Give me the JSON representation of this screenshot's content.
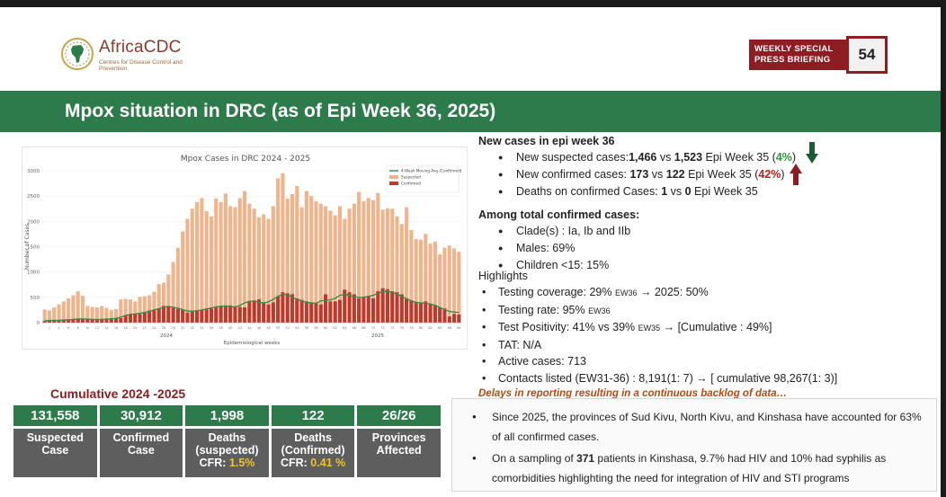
{
  "header": {
    "logo_name": "AfricaCDC",
    "logo_subtitle": "Centres for Disease Control and Prevention",
    "briefing_label_line1": "WEEKLY SPECIAL",
    "briefing_label_line2": "PRESS BRIEFING",
    "slide_number": "54"
  },
  "title": "Mpox situation in DRC (as of Epi Week 36, 2025)",
  "new_cases": {
    "heading": "New cases in epi week 36",
    "suspected": {
      "prefix": "New suspected cases:",
      "current": "1,466",
      "vs": " vs ",
      "previous": "1,523",
      "suffix": " Epi Week 35 (",
      "change": "4%",
      "close": ")"
    },
    "confirmed": {
      "prefix": "New confirmed cases: ",
      "current": "173",
      "vs": " vs ",
      "previous": "122",
      "suffix": " Epi Week 35 (",
      "change": "42%",
      "close": ")"
    },
    "deaths": {
      "prefix": "Deaths on confirmed Cases: ",
      "current": "1",
      "vs": " vs ",
      "previous": "0",
      "suffix": " Epi Week 35"
    },
    "colors": {
      "decrease": "#2a9a3a",
      "increase": "#b81e1e"
    },
    "icons": {
      "decrease": "arrow-down-icon",
      "increase": "arrow-up-icon"
    }
  },
  "confirmed_totals": {
    "heading": "Among total confirmed cases:",
    "items": [
      "Clade(s) : Ia, Ib and IIb",
      "Males: 69%",
      "Children <15: 15%"
    ]
  },
  "highlights": {
    "heading": "Highlights",
    "items": [
      {
        "text": "Testing coverage: 29% ",
        "small": "EW36",
        "rest": " → 2025: 50%"
      },
      {
        "text": "Testing rate: 95% ",
        "small": "EW36",
        "rest": ""
      },
      {
        "text": "Test Positivity: 41% vs 39% ",
        "small": "EW35",
        "rest": " →     [Cumulative : 49%]"
      },
      {
        "text": "TAT:  N/A",
        "small": "",
        "rest": ""
      },
      {
        "text": "Active cases: 713",
        "small": "",
        "rest": ""
      },
      {
        "text": "Contacts listed (EW31-36) : 8,191(1: 7) → [ cumulative  98,267(1: 3)]",
        "small": "",
        "rest": ""
      }
    ],
    "note": "Delays in reporting resulting in a continuous backlog of data…"
  },
  "cumulative": {
    "title": "Cumulative 2024 -2025",
    "stats": [
      {
        "value": "131,558",
        "label_line1": "Suspected",
        "label_line2": "Case",
        "cfr_prefix": "",
        "cfr_value": ""
      },
      {
        "value": "30,912",
        "label_line1": "Confirmed",
        "label_line2": "Case",
        "cfr_prefix": "",
        "cfr_value": ""
      },
      {
        "value": "1,998",
        "label_line1": "Deaths",
        "label_line2": "(suspected)",
        "cfr_prefix": "CFR: ",
        "cfr_value": "1.5%"
      },
      {
        "value": "122",
        "label_line1": "Deaths",
        "label_line2": "(Confirmed)",
        "cfr_prefix": "CFR: ",
        "cfr_value": "0.41 %"
      },
      {
        "value": "26/26",
        "label_line1": "Provinces",
        "label_line2": "Affected",
        "cfr_prefix": "",
        "cfr_value": ""
      }
    ]
  },
  "summary": {
    "items": [
      {
        "text": "Since 2025, the provinces of Sud Kivu, North Kivu, and Kinshasa have accounted for 63% of all confirmed cases."
      },
      {
        "pre": "On a sampling of ",
        "bold": "371",
        "post": " patients in Kinshasa, 9.7% had HIV and 10% had syphilis as comorbidities highlighting the need for integration of HIV and STI programs"
      }
    ]
  },
  "chart_data": {
    "type": "bar",
    "title": "Mpox Cases in DRC 2024 - 2025",
    "xlabel": "Epidemiological weeks",
    "ylabel": "Number of Cases",
    "ylim": [
      0,
      3000
    ],
    "yticks": [
      0,
      500,
      1000,
      1500,
      2000,
      2500,
      3000
    ],
    "year_labels": [
      "2024",
      "2025"
    ],
    "legend": [
      "4-Week Moving Avg (Confirmed)",
      "Suspected",
      "Confirmed"
    ],
    "legend_placement": "top-right",
    "colors": {
      "suspected": "#f0b48c",
      "confirmed": "#c0392b",
      "moving_avg": "#3a8a4a"
    },
    "x": [
      1,
      2,
      3,
      4,
      5,
      6,
      7,
      8,
      9,
      10,
      11,
      12,
      13,
      14,
      15,
      16,
      17,
      18,
      19,
      20,
      21,
      22,
      23,
      24,
      25,
      26,
      27,
      28,
      29,
      30,
      31,
      32,
      33,
      34,
      35,
      36,
      37,
      38,
      39,
      40,
      41,
      42,
      43,
      44,
      45,
      46,
      47,
      48,
      49,
      50,
      51,
      52,
      53,
      54,
      55,
      56,
      57,
      58,
      59,
      60,
      61,
      62,
      63,
      64,
      65,
      66,
      67,
      68,
      69,
      70,
      71,
      72,
      73,
      74,
      75,
      76,
      77,
      78,
      79,
      80,
      81,
      82,
      83,
      84,
      85,
      86,
      87,
      88
    ],
    "series": [
      {
        "name": "Suspected",
        "values": [
          260,
          240,
          300,
          360,
          420,
          480,
          540,
          620,
          530,
          330,
          310,
          300,
          330,
          290,
          250,
          270,
          460,
          470,
          460,
          420,
          510,
          520,
          540,
          610,
          760,
          790,
          950,
          1200,
          1480,
          1800,
          2050,
          2250,
          2380,
          2460,
          2200,
          2100,
          2450,
          2380,
          2550,
          2300,
          2280,
          2460,
          2600,
          2350,
          2250,
          2080,
          2140,
          2050,
          2300,
          2850,
          2950,
          2450,
          2540,
          2700,
          2280,
          2600,
          2500,
          2400,
          2350,
          2300,
          2210,
          2120,
          2300,
          2050,
          2250,
          2350,
          2580,
          2400,
          2460,
          2420,
          2560,
          2230,
          2260,
          2250,
          2100,
          1950,
          2280,
          1830,
          1650,
          1640,
          1750,
          1560,
          1600,
          1350,
          1480,
          1523,
          1466,
          1400
        ]
      },
      {
        "name": "Confirmed",
        "values": [
          30,
          35,
          40,
          40,
          50,
          55,
          60,
          70,
          80,
          70,
          60,
          55,
          60,
          65,
          70,
          80,
          90,
          150,
          160,
          180,
          170,
          210,
          240,
          260,
          280,
          330,
          310,
          290,
          270,
          250,
          200,
          220,
          230,
          250,
          260,
          280,
          300,
          320,
          330,
          340,
          320,
          310,
          300,
          420,
          440,
          460,
          380,
          360,
          400,
          520,
          600,
          580,
          560,
          480,
          450,
          420,
          400,
          380,
          360,
          560,
          420,
          420,
          450,
          650,
          600,
          560,
          480,
          500,
          520,
          480,
          620,
          680,
          660,
          620,
          600,
          560,
          480,
          440,
          400,
          380,
          420,
          360,
          340,
          300,
          280,
          122,
          173,
          160
        ]
      },
      {
        "name": "4-Week Moving Avg (Confirmed)",
        "values": [
          36,
          40,
          44,
          46,
          51,
          56,
          64,
          72,
          75,
          70,
          64,
          62,
          64,
          70,
          76,
          85,
          110,
          140,
          165,
          170,
          185,
          200,
          225,
          250,
          275,
          305,
          320,
          305,
          285,
          255,
          230,
          225,
          235,
          250,
          270,
          290,
          310,
          325,
          330,
          320,
          310,
          340,
          390,
          420,
          425,
          400,
          390,
          410,
          460,
          520,
          560,
          550,
          500,
          460,
          430,
          400,
          390,
          380,
          430,
          440,
          450,
          480,
          540,
          560,
          540,
          510,
          500,
          500,
          520,
          540,
          580,
          610,
          620,
          600,
          560,
          520,
          470,
          430,
          400,
          390,
          380,
          370,
          340,
          300,
          260,
          220,
          210,
          200
        ]
      }
    ]
  }
}
